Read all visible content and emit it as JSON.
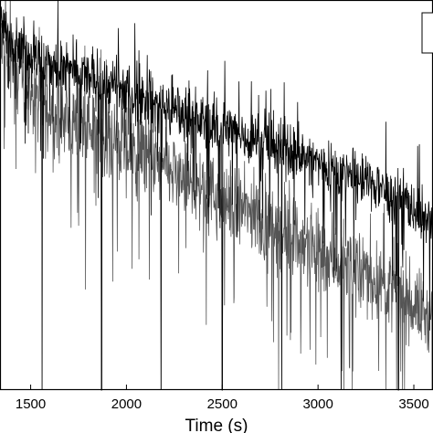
{
  "chart_data": {
    "type": "line",
    "title": "",
    "xlabel": "Time (s)",
    "ylabel": "",
    "xlim": [
      1340,
      3600
    ],
    "ylim": [
      0,
      1
    ],
    "x_ticks": [
      1500,
      2000,
      2500,
      3000,
      3500
    ],
    "x_tick_labels": [
      "1500",
      "2000",
      "2500",
      "3000",
      "3500"
    ],
    "grid": false,
    "legend": {
      "position": "top-right",
      "entries": []
    },
    "series": [
      {
        "color": "#000000",
        "baseline_x": [
          1340,
          1560,
          1870,
          2180,
          2500,
          2810,
          3120,
          3420,
          3600
        ],
        "baseline_y": [
          0.93,
          0.84,
          0.79,
          0.73,
          0.67,
          0.62,
          0.56,
          0.5,
          0.42
        ],
        "noise_amplitude": 0.05
      },
      {
        "color": "#555555",
        "baseline_x": [
          1340,
          1560,
          1870,
          2180,
          2500,
          2810,
          3120,
          3420,
          3600
        ],
        "baseline_y": [
          0.88,
          0.72,
          0.66,
          0.57,
          0.49,
          0.41,
          0.33,
          0.25,
          0.18
        ],
        "noise_amplitude": 0.07
      }
    ],
    "dips": {
      "x": [
        1560,
        1870,
        2180,
        2500,
        2810,
        3120,
        3420
      ],
      "y_min": 0.0
    }
  }
}
